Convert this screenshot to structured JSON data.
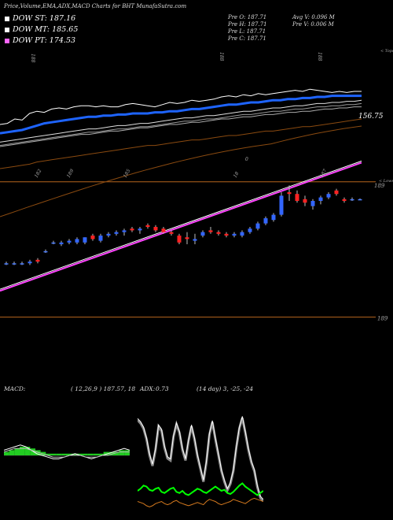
{
  "title": "Price,Volume,EMA,ADX,MACD Charts for BHT MunafaSutra.com",
  "legend": [
    {
      "label": "DOW ST: 187.16",
      "color": "#ffffff"
    },
    {
      "label": "DOW MT: 185.65",
      "color": "#ffffff"
    },
    {
      "label": "DOW PT: 174.53",
      "color": "#ff66ff"
    }
  ],
  "prev": {
    "open": "Pre   O: 187.71",
    "high": "Pre   H: 187.71",
    "low": "Pre   L: 187.71",
    "close": "Pre   C: 187.71",
    "avg_vol": "Avg V: 0.096   M",
    "prev_vol": "Pre   V: 0.006   M"
  },
  "macd": {
    "label": "MACD:",
    "params": "( 12,26,9 ) 187.57, 18"
  },
  "adx": {
    "label": "ADX:",
    "value": "0.73",
    "params": "(14 day) 3, -25, -24"
  },
  "chart_data": [
    {
      "type": "line",
      "panel": "EMA",
      "top_label": "< Tops",
      "price_label": "156.75",
      "tick_labels": [
        "188",
        "188",
        "188",
        "0"
      ],
      "series": [
        {
          "color": "#ffffff",
          "values": [
            30,
            31,
            35,
            34,
            40,
            42,
            41,
            44,
            45,
            44,
            46,
            47,
            47,
            46,
            47,
            46,
            46,
            48,
            49,
            48,
            47,
            46,
            48,
            50,
            49,
            50,
            52,
            51,
            52,
            53,
            55,
            56,
            55,
            57,
            56,
            58,
            57,
            58,
            59,
            60,
            61,
            60,
            62,
            61,
            60,
            59,
            60,
            59,
            60,
            60
          ]
        },
        {
          "color": "#1e64ff",
          "values": [
            22,
            23,
            24,
            25,
            27,
            29,
            31,
            32,
            33,
            34,
            35,
            36,
            37,
            37,
            38,
            38,
            39,
            39,
            40,
            40,
            40,
            41,
            41,
            42,
            42,
            43,
            44,
            44,
            45,
            46,
            47,
            48,
            48,
            49,
            50,
            50,
            51,
            52,
            52,
            53,
            53,
            54,
            54,
            55,
            55,
            56,
            56,
            56,
            56,
            56
          ]
        },
        {
          "color": "#dddddd",
          "values": [
            14,
            15,
            16,
            17,
            18,
            19,
            20,
            21,
            22,
            23,
            24,
            25,
            26,
            26,
            27,
            28,
            29,
            29,
            30,
            31,
            31,
            32,
            33,
            34,
            35,
            36,
            36,
            37,
            38,
            38,
            39,
            40,
            41,
            42,
            42,
            43,
            44,
            45,
            45,
            46,
            47,
            47,
            48,
            49,
            49,
            50,
            50,
            51,
            51,
            52
          ]
        },
        {
          "color": "#aaaaaa",
          "values": [
            10,
            11,
            12,
            13,
            14,
            15,
            16,
            17,
            18,
            19,
            20,
            21,
            21,
            22,
            23,
            24,
            24,
            25,
            26,
            27,
            27,
            28,
            29,
            30,
            30,
            31,
            32,
            32,
            33,
            34,
            35,
            35,
            36,
            37,
            37,
            38,
            39,
            39,
            40,
            41,
            41,
            42,
            42,
            43,
            44,
            44,
            45,
            45,
            46,
            46
          ]
        },
        {
          "color": "#8a4a10",
          "values": [
            -10,
            -9,
            -8,
            -7,
            -6,
            -4,
            -3,
            -2,
            -1,
            0,
            1,
            2,
            3,
            4,
            5,
            6,
            7,
            8,
            9,
            10,
            11,
            11,
            12,
            13,
            14,
            15,
            16,
            16,
            17,
            18,
            19,
            20,
            20,
            21,
            22,
            23,
            24,
            24,
            25,
            26,
            27,
            28,
            28,
            29,
            30,
            31,
            32,
            33,
            34,
            35
          ]
        }
      ]
    },
    {
      "type": "candlestick",
      "panel": "Price",
      "top_label": "< Lows",
      "tick_labels": [
        "182",
        "189",
        "185",
        "18",
        "187"
      ],
      "right_labels": [
        "189",
        "189"
      ],
      "trendline": {
        "from": 186.2,
        "to": 189.9
      },
      "resistance": 189.3,
      "support": 185.4,
      "candles": [
        {
          "o": 186.95,
          "h": 187.0,
          "l": 186.9,
          "c": 186.95
        },
        {
          "o": 186.95,
          "h": 187.0,
          "l": 186.9,
          "c": 186.95
        },
        {
          "o": 186.95,
          "h": 187.0,
          "l": 186.9,
          "c": 186.95
        },
        {
          "o": 186.95,
          "h": 187.05,
          "l": 186.9,
          "c": 187.0
        },
        {
          "o": 187.05,
          "h": 187.1,
          "l": 186.95,
          "c": 187.0
        },
        {
          "o": 187.3,
          "h": 187.35,
          "l": 187.25,
          "c": 187.3
        },
        {
          "o": 187.55,
          "h": 187.6,
          "l": 187.5,
          "c": 187.55
        },
        {
          "o": 187.5,
          "h": 187.6,
          "l": 187.45,
          "c": 187.55
        },
        {
          "o": 187.55,
          "h": 187.65,
          "l": 187.5,
          "c": 187.6
        },
        {
          "o": 187.55,
          "h": 187.7,
          "l": 187.5,
          "c": 187.65
        },
        {
          "o": 187.55,
          "h": 187.7,
          "l": 187.5,
          "c": 187.7
        },
        {
          "o": 187.75,
          "h": 187.8,
          "l": 187.6,
          "c": 187.65
        },
        {
          "o": 187.6,
          "h": 187.8,
          "l": 187.55,
          "c": 187.75
        },
        {
          "o": 187.75,
          "h": 187.85,
          "l": 187.7,
          "c": 187.8
        },
        {
          "o": 187.8,
          "h": 187.9,
          "l": 187.75,
          "c": 187.85
        },
        {
          "o": 187.85,
          "h": 187.95,
          "l": 187.75,
          "c": 187.9
        },
        {
          "o": 187.95,
          "h": 188.0,
          "l": 187.85,
          "c": 187.9
        },
        {
          "o": 187.9,
          "h": 188.0,
          "l": 187.8,
          "c": 187.95
        },
        {
          "o": 188.05,
          "h": 188.1,
          "l": 187.95,
          "c": 188.0
        },
        {
          "o": 188.0,
          "h": 188.05,
          "l": 187.85,
          "c": 187.9
        },
        {
          "o": 187.95,
          "h": 188.0,
          "l": 187.8,
          "c": 187.85
        },
        {
          "o": 187.85,
          "h": 187.9,
          "l": 187.75,
          "c": 187.8
        },
        {
          "o": 187.75,
          "h": 187.8,
          "l": 187.5,
          "c": 187.55
        },
        {
          "o": 187.7,
          "h": 187.85,
          "l": 187.5,
          "c": 187.65
        },
        {
          "o": 187.6,
          "h": 187.8,
          "l": 187.5,
          "c": 187.65
        },
        {
          "o": 187.75,
          "h": 187.9,
          "l": 187.7,
          "c": 187.85
        },
        {
          "o": 187.9,
          "h": 188.0,
          "l": 187.8,
          "c": 187.85
        },
        {
          "o": 187.85,
          "h": 187.9,
          "l": 187.75,
          "c": 187.8
        },
        {
          "o": 187.8,
          "h": 187.85,
          "l": 187.7,
          "c": 187.75
        },
        {
          "o": 187.75,
          "h": 187.85,
          "l": 187.7,
          "c": 187.8
        },
        {
          "o": 187.75,
          "h": 187.9,
          "l": 187.7,
          "c": 187.85
        },
        {
          "o": 187.85,
          "h": 188.0,
          "l": 187.8,
          "c": 187.95
        },
        {
          "o": 187.95,
          "h": 188.15,
          "l": 187.9,
          "c": 188.1
        },
        {
          "o": 188.1,
          "h": 188.3,
          "l": 188.05,
          "c": 188.25
        },
        {
          "o": 188.2,
          "h": 188.4,
          "l": 188.15,
          "c": 188.35
        },
        {
          "o": 188.35,
          "h": 189.0,
          "l": 188.3,
          "c": 188.9
        },
        {
          "o": 189.0,
          "h": 189.2,
          "l": 188.75,
          "c": 188.95
        },
        {
          "o": 188.95,
          "h": 189.05,
          "l": 188.7,
          "c": 188.75
        },
        {
          "o": 188.8,
          "h": 188.9,
          "l": 188.6,
          "c": 188.7
        },
        {
          "o": 188.6,
          "h": 188.8,
          "l": 188.5,
          "c": 188.75
        },
        {
          "o": 188.75,
          "h": 188.9,
          "l": 188.65,
          "c": 188.85
        },
        {
          "o": 188.85,
          "h": 189.0,
          "l": 188.8,
          "c": 188.95
        },
        {
          "o": 189.05,
          "h": 189.1,
          "l": 188.9,
          "c": 188.95
        },
        {
          "o": 188.8,
          "h": 188.85,
          "l": 188.7,
          "c": 188.75
        },
        {
          "o": 188.8,
          "h": 188.85,
          "l": 188.75,
          "c": 188.8
        },
        {
          "o": 188.8,
          "h": 188.82,
          "l": 188.78,
          "c": 188.8
        }
      ]
    },
    {
      "type": "area",
      "panel": "MACD",
      "series": [
        {
          "color": "#ffffff",
          "values": [
            3,
            4,
            5,
            6,
            5,
            3,
            1,
            0,
            -1,
            -2,
            -2,
            -1,
            0,
            1,
            0,
            -1,
            -2,
            -1,
            0,
            1,
            2,
            3,
            4,
            3
          ]
        },
        {
          "color": "#bbbbbb",
          "values": [
            2,
            3,
            4,
            4,
            4,
            3,
            2,
            1,
            0,
            -1,
            -1,
            -1,
            0,
            0,
            0,
            -1,
            -1,
            -1,
            0,
            0,
            1,
            2,
            2,
            2
          ]
        }
      ],
      "histogram": [
        2,
        3,
        4,
        5,
        5,
        4,
        3,
        2,
        1,
        1,
        1,
        1,
        1,
        1,
        1,
        1,
        1,
        1,
        1,
        2,
        2,
        2,
        3,
        3
      ]
    },
    {
      "type": "line",
      "panel": "ADX",
      "series": [
        {
          "color": "#ffffff",
          "values": [
            88,
            85,
            80,
            70,
            55,
            45,
            60,
            82,
            78,
            62,
            52,
            50,
            72,
            84,
            76,
            60,
            50,
            68,
            82,
            70,
            54,
            42,
            30,
            48,
            74,
            86,
            70,
            55,
            40,
            30,
            22,
            28,
            40,
            62,
            80,
            90,
            76,
            60,
            48,
            40,
            25,
            15,
            12
          ]
        },
        {
          "color": "#00ff00",
          "values": [
            20,
            22,
            25,
            24,
            21,
            20,
            22,
            23,
            19,
            18,
            20,
            22,
            23,
            19,
            18,
            20,
            17,
            16,
            18,
            20,
            22,
            21,
            19,
            18,
            20,
            22,
            24,
            22,
            20,
            21,
            18,
            17,
            19,
            22,
            25,
            27,
            24,
            22,
            20,
            18,
            16,
            18,
            20
          ]
        },
        {
          "color": "#d67a1e",
          "values": [
            10,
            9,
            8,
            6,
            5,
            6,
            8,
            9,
            10,
            8,
            7,
            8,
            10,
            11,
            9,
            8,
            7,
            6,
            7,
            8,
            9,
            8,
            7,
            10,
            12,
            11,
            10,
            8,
            7,
            8,
            9,
            10,
            12,
            11,
            10,
            9,
            8,
            10,
            12,
            13,
            12,
            11,
            10
          ]
        }
      ]
    }
  ]
}
